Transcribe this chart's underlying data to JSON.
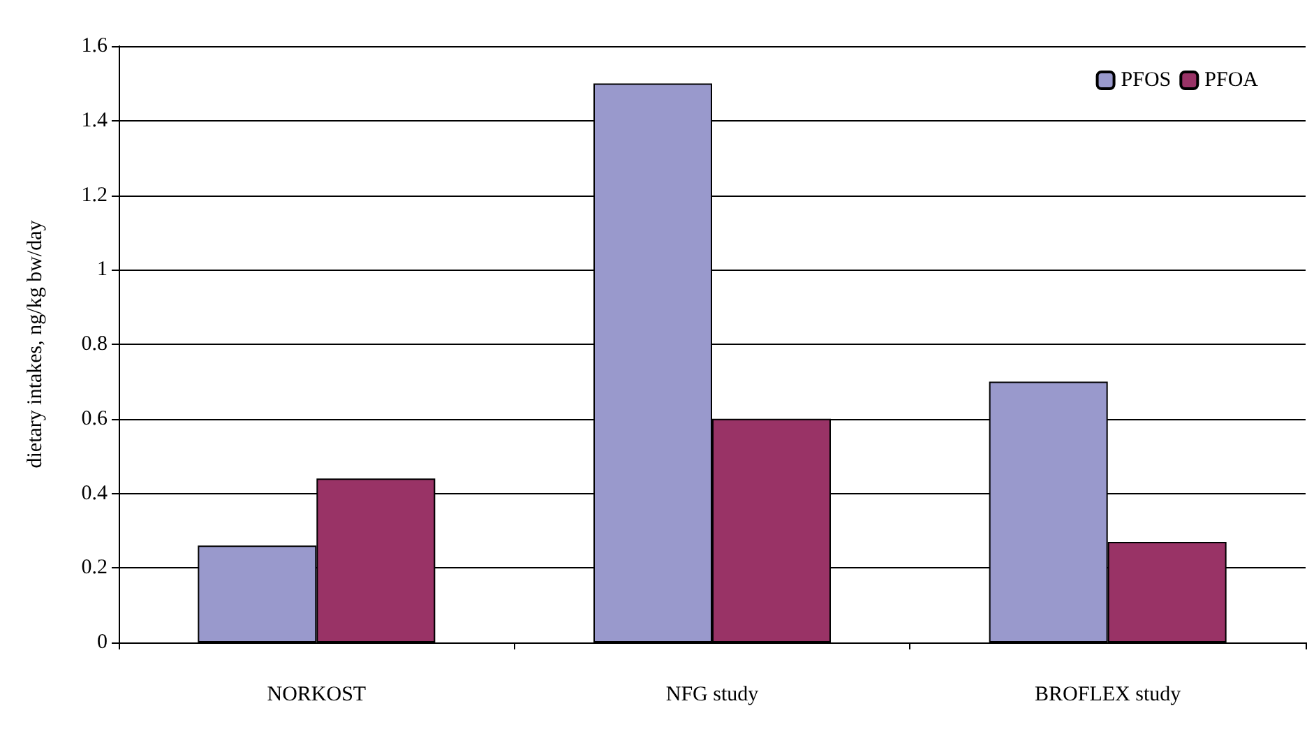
{
  "chart_data": {
    "type": "bar",
    "ylabel": "dietary intakes, ng/kg bw/day",
    "categories": [
      "NORKOST",
      "NFG study",
      "BROFLEX study"
    ],
    "series": [
      {
        "name": "PFOS",
        "color": "#9999cc",
        "values": [
          0.26,
          1.5,
          0.7
        ]
      },
      {
        "name": "PFOA",
        "color": "#993366",
        "values": [
          0.44,
          0.6,
          0.27
        ]
      }
    ],
    "ylim": [
      0,
      1.6
    ],
    "yticks": [
      0,
      0.2,
      0.4,
      0.6,
      0.8,
      1,
      1.2,
      1.4,
      1.6
    ],
    "grid": "y",
    "legend": "top right"
  }
}
